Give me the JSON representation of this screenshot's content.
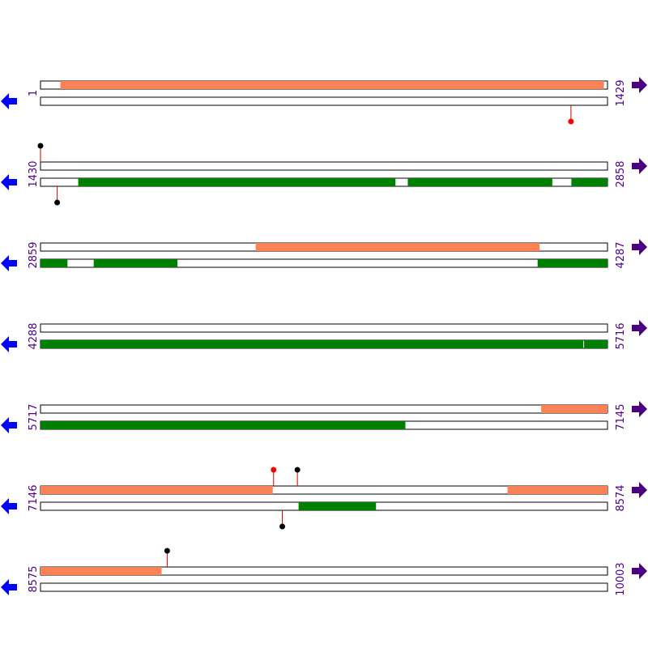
{
  "colors": {
    "strand_line": "#000000",
    "forward_feature": "#fa8355",
    "reverse_feature": "#008000",
    "stem": "#cc0000",
    "marker_red": "#ff0000",
    "marker_black": "#000000",
    "left_arrow": "#0000ff",
    "right_arrow": "#4b0082",
    "coordinate_text": "#4b0082"
  },
  "icons": {
    "left": "blue-left-arrow-icon",
    "right": "purple-right-arrow-icon"
  },
  "rows": [
    {
      "start_label": "1",
      "end_label": "1429",
      "start": 1,
      "end": 1429,
      "forward_features": [
        [
          51,
          1420
        ]
      ],
      "reverse_features": [],
      "markers": [
        {
          "pos": 1337,
          "side": "below",
          "color": "red"
        }
      ]
    },
    {
      "start_label": "1430",
      "end_label": "2858",
      "start": 1430,
      "end": 2858,
      "forward_features": [],
      "reverse_features": [
        [
          1525,
          2324
        ],
        [
          2355,
          2719
        ],
        [
          2767,
          2858
        ]
      ],
      "markers": [
        {
          "pos": 1430,
          "side": "above",
          "color": "black"
        },
        {
          "pos": 1472,
          "side": "below",
          "color": "black"
        }
      ]
    },
    {
      "start_label": "2859",
      "end_label": "4287",
      "start": 2859,
      "end": 4287,
      "forward_features": [
        [
          3401,
          4116
        ]
      ],
      "reverse_features": [
        [
          2859,
          2927
        ],
        [
          2993,
          3204
        ],
        [
          4111,
          4287
        ]
      ],
      "markers": []
    },
    {
      "start_label": "4288",
      "end_label": "5716",
      "start": 4288,
      "end": 5716,
      "forward_features": [],
      "reverse_features": [
        [
          4288,
          5655
        ],
        [
          5657,
          5716
        ]
      ],
      "markers": []
    },
    {
      "start_label": "5717",
      "end_label": "7145",
      "start": 5717,
      "end": 7145,
      "forward_features": [
        [
          6978,
          7145
        ]
      ],
      "reverse_features": [
        [
          5717,
          6636
        ]
      ],
      "markers": []
    },
    {
      "start_label": "7146",
      "end_label": "8574",
      "start": 7146,
      "end": 8574,
      "forward_features": [
        [
          7146,
          7731
        ],
        [
          8322,
          8574
        ]
      ],
      "reverse_features": [
        [
          7796,
          7991
        ]
      ],
      "markers": [
        {
          "pos": 7733,
          "side": "above",
          "color": "red"
        },
        {
          "pos": 7755,
          "side": "below",
          "color": "black"
        },
        {
          "pos": 7793,
          "side": "above",
          "color": "black"
        }
      ]
    },
    {
      "start_label": "8575",
      "end_label": "10003",
      "start": 8575,
      "end": 10003,
      "forward_features": [
        [
          8575,
          8880
        ]
      ],
      "reverse_features": [],
      "markers": [
        {
          "pos": 8894,
          "side": "above",
          "color": "black"
        }
      ]
    }
  ]
}
